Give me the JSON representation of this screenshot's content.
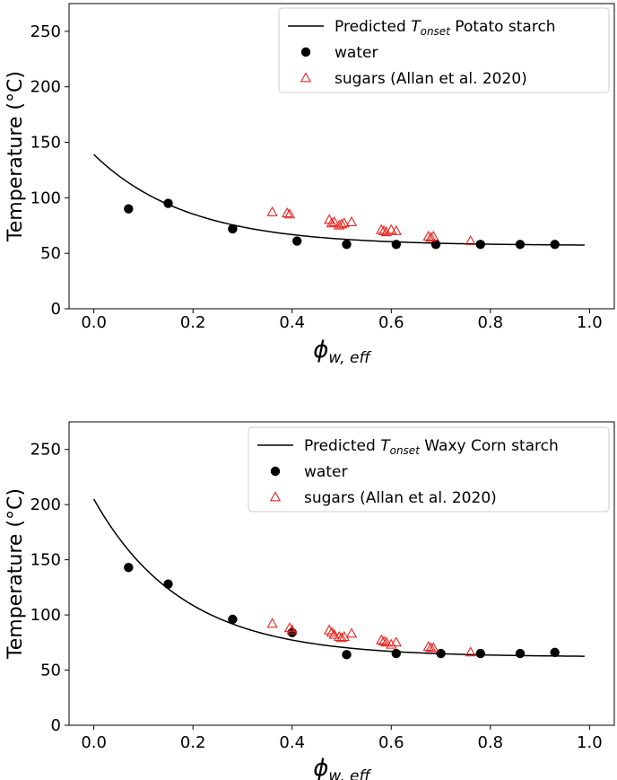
{
  "chart_data": [
    {
      "type": "scatter",
      "xlabel_base": "ϕ",
      "xlabel_sub": "w, eff",
      "ylabel": "Temperature (°C)",
      "xlim": [
        -0.05,
        1.05
      ],
      "ylim": [
        0,
        275
      ],
      "xticks": [
        "0.0",
        "0.2",
        "0.4",
        "0.6",
        "0.8",
        "1.0"
      ],
      "yticks": [
        "0",
        "50",
        "100",
        "150",
        "200",
        "250"
      ],
      "legend": {
        "position": "top-right",
        "fit_prefix": "Predicted ",
        "fit_T": "T",
        "fit_sub": "onset",
        "fit_suffix": " Potato starch",
        "water": "water",
        "sugars": "sugars (Allan et al. 2020)"
      },
      "fit_curve": {
        "model": "exponential",
        "t_inf": 57.0,
        "amplitude": 82.0,
        "rate": 5.3
      },
      "series": [
        {
          "name": "water",
          "marker": "circle",
          "color": "#000000",
          "x": [
            0.07,
            0.15,
            0.28,
            0.41,
            0.51,
            0.61,
            0.69,
            0.78,
            0.86,
            0.93
          ],
          "y": [
            90,
            95,
            72,
            61,
            58,
            58,
            58,
            58,
            58,
            58
          ]
        },
        {
          "name": "sugars (Allan et al. 2020)",
          "marker": "triangle-open",
          "color": "#e8251f",
          "x": [
            0.36,
            0.39,
            0.395,
            0.475,
            0.48,
            0.485,
            0.495,
            0.5,
            0.505,
            0.52,
            0.58,
            0.585,
            0.59,
            0.6,
            0.61,
            0.675,
            0.68,
            0.685,
            0.76
          ],
          "y": [
            87,
            86,
            85,
            80,
            77,
            78,
            75,
            76,
            77,
            78,
            71,
            70,
            69,
            71,
            70,
            65,
            64,
            65,
            61
          ]
        }
      ]
    },
    {
      "type": "scatter",
      "xlabel_base": "ϕ",
      "xlabel_sub": "w, eff",
      "ylabel": "Temperature (°C)",
      "xlim": [
        -0.05,
        1.05
      ],
      "ylim": [
        0,
        275
      ],
      "xticks": [
        "0.0",
        "0.2",
        "0.4",
        "0.6",
        "0.8",
        "1.0"
      ],
      "yticks": [
        "0",
        "50",
        "100",
        "150",
        "200",
        "250"
      ],
      "legend": {
        "position": "top-right",
        "fit_prefix": "Predicted ",
        "fit_T": "T",
        "fit_sub": "onset",
        "fit_suffix": " Waxy Corn starch",
        "water": "water",
        "sugars": "sugars (Allan et al. 2020)"
      },
      "fit_curve": {
        "model": "exponential",
        "t_inf": 62.0,
        "amplitude": 143.0,
        "rate": 5.6
      },
      "series": [
        {
          "name": "water",
          "marker": "circle",
          "color": "#000000",
          "x": [
            0.07,
            0.15,
            0.28,
            0.4,
            0.51,
            0.61,
            0.7,
            0.78,
            0.86,
            0.93
          ],
          "y": [
            143,
            128,
            96,
            84,
            64,
            65,
            65,
            65,
            65,
            66
          ]
        },
        {
          "name": "sugars (Allan et al. 2020)",
          "marker": "triangle-open",
          "color": "#e8251f",
          "x": [
            0.36,
            0.395,
            0.4,
            0.475,
            0.48,
            0.485,
            0.495,
            0.5,
            0.505,
            0.52,
            0.58,
            0.585,
            0.59,
            0.6,
            0.61,
            0.675,
            0.68,
            0.685,
            0.76
          ],
          "y": [
            92,
            88,
            86,
            86,
            84,
            82,
            80,
            79,
            80,
            83,
            77,
            76,
            75,
            73,
            75,
            71,
            70,
            70,
            66
          ]
        }
      ]
    }
  ]
}
